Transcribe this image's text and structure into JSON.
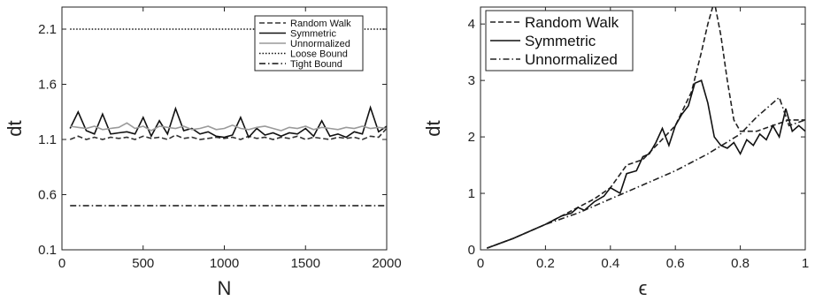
{
  "chart_data": [
    {
      "type": "line",
      "xlabel": "N",
      "ylabel": "dt",
      "xlim": [
        0,
        2000
      ],
      "ylim": [
        0.1,
        2.3
      ],
      "xticks": [
        "0",
        "500",
        "1000",
        "1500",
        "2000"
      ],
      "yticks": [
        "0.1",
        "0.6",
        "1.1",
        "1.6",
        "2.1"
      ],
      "legend_position": "top-right",
      "series": [
        {
          "name": "Random Walk",
          "style": "dashed",
          "color": "#333333",
          "x": [
            50,
            100,
            150,
            200,
            250,
            300,
            350,
            400,
            450,
            500,
            550,
            600,
            650,
            700,
            750,
            800,
            850,
            900,
            950,
            1000,
            1050,
            1100,
            1150,
            1200,
            1250,
            1300,
            1350,
            1400,
            1450,
            1500,
            1550,
            1600,
            1650,
            1700,
            1750,
            1800,
            1850,
            1900,
            1950,
            2000
          ],
          "values": [
            1.1,
            1.13,
            1.1,
            1.12,
            1.1,
            1.12,
            1.11,
            1.12,
            1.1,
            1.13,
            1.11,
            1.12,
            1.1,
            1.14,
            1.11,
            1.12,
            1.1,
            1.11,
            1.12,
            1.11,
            1.12,
            1.1,
            1.13,
            1.11,
            1.12,
            1.1,
            1.12,
            1.11,
            1.13,
            1.1,
            1.12,
            1.11,
            1.1,
            1.12,
            1.11,
            1.12,
            1.1,
            1.13,
            1.12,
            1.2
          ]
        },
        {
          "name": "Symmetric",
          "style": "solid",
          "color": "#111111",
          "x": [
            50,
            100,
            150,
            200,
            250,
            300,
            350,
            400,
            450,
            500,
            550,
            600,
            650,
            700,
            750,
            800,
            850,
            900,
            950,
            1000,
            1050,
            1100,
            1150,
            1200,
            1250,
            1300,
            1350,
            1400,
            1450,
            1500,
            1550,
            1600,
            1650,
            1700,
            1750,
            1800,
            1850,
            1900,
            1950,
            2000
          ],
          "values": [
            1.2,
            1.35,
            1.18,
            1.15,
            1.33,
            1.15,
            1.16,
            1.17,
            1.15,
            1.3,
            1.13,
            1.27,
            1.15,
            1.38,
            1.18,
            1.2,
            1.15,
            1.17,
            1.13,
            1.12,
            1.14,
            1.3,
            1.12,
            1.2,
            1.14,
            1.16,
            1.13,
            1.16,
            1.15,
            1.2,
            1.13,
            1.27,
            1.13,
            1.15,
            1.12,
            1.17,
            1.15,
            1.39,
            1.17,
            1.22
          ]
        },
        {
          "name": "Unnormalized",
          "style": "solid",
          "color": "#9a9a9a",
          "x": [
            50,
            100,
            150,
            200,
            250,
            300,
            350,
            400,
            450,
            500,
            550,
            600,
            650,
            700,
            750,
            800,
            850,
            900,
            950,
            1000,
            1050,
            1100,
            1150,
            1200,
            1250,
            1300,
            1350,
            1400,
            1450,
            1500,
            1550,
            1600,
            1650,
            1700,
            1750,
            1800,
            1850,
            1900,
            1950,
            2000
          ],
          "values": [
            1.22,
            1.21,
            1.2,
            1.22,
            1.19,
            1.2,
            1.21,
            1.25,
            1.2,
            1.22,
            1.18,
            1.22,
            1.21,
            1.2,
            1.22,
            1.19,
            1.2,
            1.22,
            1.19,
            1.2,
            1.23,
            1.2,
            1.19,
            1.21,
            1.22,
            1.2,
            1.18,
            1.21,
            1.2,
            1.22,
            1.19,
            1.21,
            1.2,
            1.19,
            1.21,
            1.2,
            1.22,
            1.2,
            1.21,
            1.2
          ]
        },
        {
          "name": "Loose Bound",
          "style": "dotted",
          "color": "#111111",
          "x": [
            50,
            2000
          ],
          "values": [
            2.1,
            2.1
          ]
        },
        {
          "name": "Tight Bound",
          "style": "dashdot",
          "color": "#111111",
          "x": [
            50,
            2000
          ],
          "values": [
            0.5,
            0.5
          ]
        }
      ]
    },
    {
      "type": "line",
      "xlabel": "ϵ",
      "ylabel": "dt",
      "xlim": [
        0,
        1
      ],
      "ylim": [
        0,
        4.3
      ],
      "xticks": [
        "0",
        "0.2",
        "0.4",
        "0.6",
        "0.8",
        "1"
      ],
      "yticks": [
        "0",
        "1",
        "2",
        "3",
        "4"
      ],
      "legend_position": "top-left",
      "series": [
        {
          "name": "Random Walk",
          "style": "dashed",
          "color": "#222222",
          "x": [
            0.02,
            0.1,
            0.2,
            0.25,
            0.3,
            0.35,
            0.4,
            0.45,
            0.5,
            0.55,
            0.6,
            0.65,
            0.68,
            0.7,
            0.72,
            0.74,
            0.76,
            0.78,
            0.8,
            0.85,
            0.9,
            0.95,
            1.0
          ],
          "values": [
            0.03,
            0.2,
            0.45,
            0.6,
            0.75,
            0.9,
            1.1,
            1.5,
            1.6,
            1.9,
            2.2,
            2.8,
            3.5,
            4.0,
            4.4,
            3.8,
            3.0,
            2.3,
            2.1,
            2.1,
            2.2,
            2.3,
            2.3
          ]
        },
        {
          "name": "Symmetric",
          "style": "solid",
          "color": "#111111",
          "x": [
            0.02,
            0.1,
            0.2,
            0.25,
            0.28,
            0.3,
            0.32,
            0.35,
            0.38,
            0.4,
            0.43,
            0.45,
            0.48,
            0.5,
            0.52,
            0.54,
            0.56,
            0.58,
            0.6,
            0.62,
            0.64,
            0.66,
            0.68,
            0.7,
            0.72,
            0.74,
            0.76,
            0.78,
            0.8,
            0.82,
            0.84,
            0.86,
            0.88,
            0.9,
            0.92,
            0.94,
            0.96,
            0.98,
            1.0
          ],
          "values": [
            0.03,
            0.2,
            0.45,
            0.6,
            0.65,
            0.75,
            0.7,
            0.85,
            0.95,
            1.1,
            1.0,
            1.35,
            1.4,
            1.65,
            1.7,
            1.9,
            2.15,
            1.85,
            2.2,
            2.4,
            2.55,
            2.95,
            3.0,
            2.6,
            2.0,
            1.85,
            1.8,
            1.9,
            1.7,
            1.95,
            1.85,
            2.05,
            1.95,
            2.2,
            2.0,
            2.5,
            2.1,
            2.2,
            2.1
          ]
        },
        {
          "name": "Unnormalized",
          "style": "dashdot",
          "color": "#222222",
          "x": [
            0.02,
            0.1,
            0.2,
            0.3,
            0.4,
            0.5,
            0.6,
            0.7,
            0.8,
            0.85,
            0.9,
            0.92,
            0.95,
            1.0
          ],
          "values": [
            0.03,
            0.2,
            0.45,
            0.65,
            0.9,
            1.15,
            1.4,
            1.7,
            2.05,
            2.35,
            2.6,
            2.7,
            2.2,
            2.3
          ]
        }
      ]
    }
  ]
}
